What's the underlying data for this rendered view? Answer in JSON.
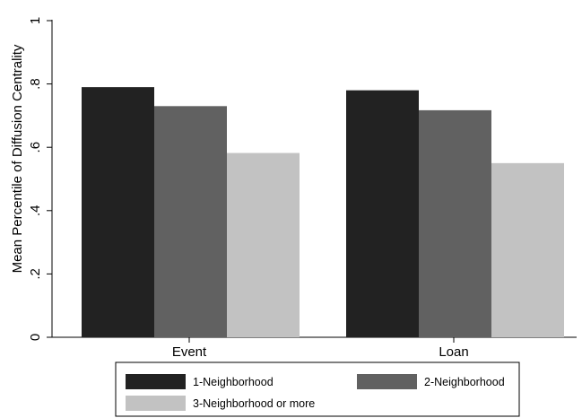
{
  "chart_data": {
    "type": "bar",
    "title": "",
    "xlabel": "",
    "ylabel": "Mean Percentile of Diffusion Centrality",
    "categories": [
      "Event",
      "Loan"
    ],
    "series": [
      {
        "name": "1-Neighborhood",
        "values": [
          0.79,
          0.78
        ],
        "color": "#222222"
      },
      {
        "name": "2-Neighborhood",
        "values": [
          0.73,
          0.717
        ],
        "color": "#616161"
      },
      {
        "name": "3-Neighborhood or more",
        "values": [
          0.582,
          0.55
        ],
        "color": "#c2c2c2"
      }
    ],
    "ylim": [
      0,
      1
    ],
    "yticks": [
      0,
      0.2,
      0.4,
      0.6,
      0.8,
      1
    ],
    "ytick_labels": [
      "0",
      ".2",
      ".4",
      ".6",
      ".8",
      "1"
    ],
    "grid": false,
    "legend_position": "bottom"
  }
}
